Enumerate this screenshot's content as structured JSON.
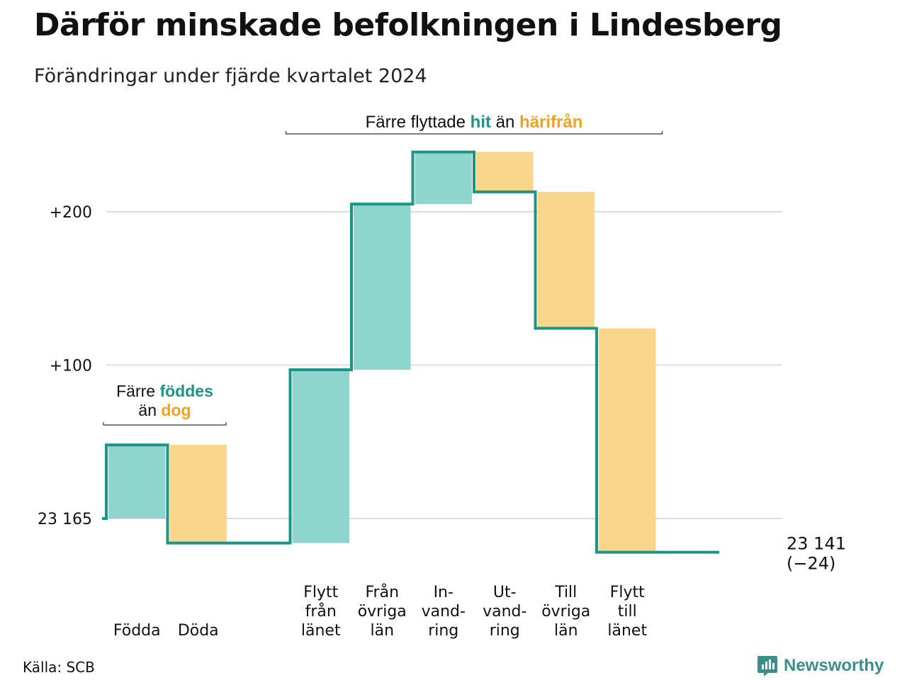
{
  "header": {
    "title": "Därför minskade befolkningen i Lindesberg",
    "subtitle": "Förändringar under fjärde kvartalet 2024"
  },
  "colors": {
    "increase": "#8dd5cd",
    "decrease": "#fad58c",
    "line": "#1f9486",
    "accent_green": "#1f9486",
    "accent_orange": "#f2a31b",
    "grid": "#dddddd"
  },
  "chart_data": {
    "type": "waterfall",
    "start_value": 23165,
    "start_label": "23 165",
    "end_value": 23141,
    "end_label": "23 141",
    "end_change_label": "(−24)",
    "ytick_labels": [
      "23 165",
      "+100",
      "+200"
    ],
    "ytick_values": [
      0,
      100,
      200
    ],
    "ylim": [
      -40,
      260
    ],
    "steps": [
      {
        "label": [
          "Födda"
        ],
        "change": 48,
        "direction": "in"
      },
      {
        "label": [
          "Döda"
        ],
        "change": -64,
        "direction": "out"
      },
      {
        "label": [],
        "change": 0,
        "direction": "none"
      },
      {
        "label": [
          "Flytt",
          "från",
          "länet"
        ],
        "change": 113,
        "direction": "in"
      },
      {
        "label": [
          "Från",
          "övriga",
          "län"
        ],
        "change": 108,
        "direction": "in"
      },
      {
        "label": [
          "In-",
          "vand-",
          "ring"
        ],
        "change": 34,
        "direction": "in"
      },
      {
        "label": [
          "Ut-",
          "vand-",
          "ring"
        ],
        "change": -26,
        "direction": "out"
      },
      {
        "label": [
          "Till",
          "övriga",
          "län"
        ],
        "change": -89,
        "direction": "out"
      },
      {
        "label": [
          "Flytt",
          "till",
          "länet"
        ],
        "change": -146,
        "direction": "out"
      },
      {
        "label": [],
        "change": 0,
        "direction": "none"
      }
    ],
    "annotations": {
      "births": {
        "line1_pre": "Färre ",
        "line1_em": "föddes",
        "line2_pre": "än ",
        "line2_em": "dog"
      },
      "migration": {
        "pre": "Färre flyttade ",
        "em1": "hit",
        "mid": " än ",
        "em2": "härifrån"
      }
    }
  },
  "footer": {
    "source": "Källa: SCB",
    "brand": "Newsworthy",
    "brand_icon": "bar-chart-speech-bubble-icon"
  }
}
